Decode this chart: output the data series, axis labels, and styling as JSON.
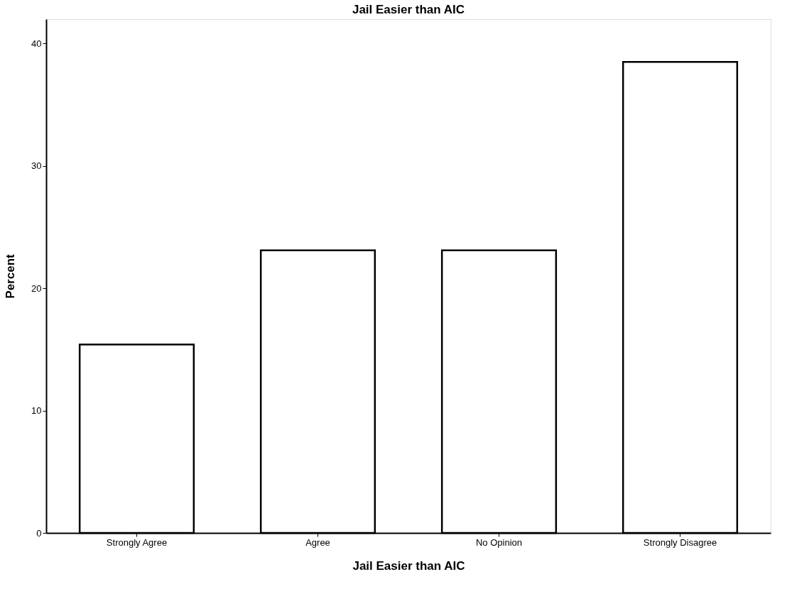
{
  "chart_data": {
    "type": "bar",
    "title": "Jail Easier than AIC",
    "xlabel": "Jail Easier than AIC",
    "ylabel": "Percent",
    "categories": [
      "Strongly Agree",
      "Agree",
      "No Opinion",
      "Strongly Disagree"
    ],
    "values": [
      15.4,
      23.1,
      23.1,
      38.5
    ],
    "color": "#ffffff",
    "ylim": [
      0,
      42
    ],
    "yticks": [
      0,
      10,
      20,
      30,
      40
    ],
    "grid": false
  }
}
